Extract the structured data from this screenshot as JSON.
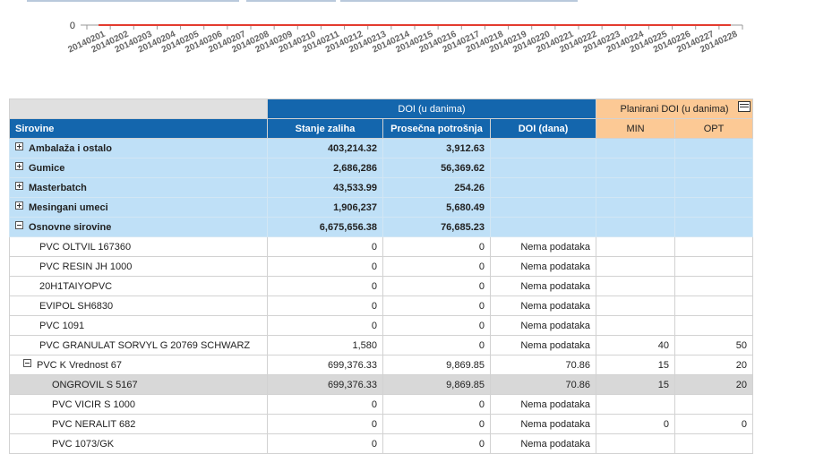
{
  "chart_data": {
    "type": "line",
    "title": "",
    "xlabel": "",
    "ylabel": "",
    "y_tick_labels": [
      "0"
    ],
    "ylim": [
      0,
      1
    ],
    "categories": [
      "20140201",
      "20140202",
      "20140203",
      "20140204",
      "20140205",
      "20140206",
      "20140207",
      "20140208",
      "20140209",
      "20140210",
      "20140211",
      "20140212",
      "20140213",
      "20140214",
      "20140215",
      "20140216",
      "20140217",
      "20140218",
      "20140219",
      "20140220",
      "20140221",
      "20140222",
      "20140223",
      "20140224",
      "20140225",
      "20140226",
      "20140227",
      "20140228"
    ],
    "series": [
      {
        "name": "",
        "color": "#e33b2e",
        "values": [
          0,
          0,
          0,
          0,
          0,
          0,
          0,
          0,
          0,
          0,
          0,
          0,
          0,
          0,
          0,
          0,
          0,
          0,
          0,
          0,
          0,
          0,
          0,
          0,
          0,
          0,
          0,
          0
        ]
      }
    ]
  },
  "table": {
    "group_header_doi": "DOI  (u danima)",
    "group_header_plan": "Planirani DOI (u danima)",
    "columns": [
      "Sirovine",
      "Stanje zaliha",
      "Prosečna potrošnja",
      "DOI (dana)",
      "MIN",
      "OPT"
    ],
    "groups": [
      {
        "name": "Ambalaža i ostalo",
        "stock": "403,214.32",
        "avg": "3,912.63",
        "doi": "",
        "min": "",
        "opt": ""
      },
      {
        "name": "Gumice",
        "stock": "2,686,286",
        "avg": "56,369.62",
        "doi": "",
        "min": "",
        "opt": ""
      },
      {
        "name": "Masterbatch",
        "stock": "43,533.99",
        "avg": "254.26",
        "doi": "",
        "min": "",
        "opt": ""
      },
      {
        "name": "Mesingani umeci",
        "stock": "1,906,237",
        "avg": "5,680.49",
        "doi": "",
        "min": "",
        "opt": ""
      },
      {
        "name": "Osnovne sirovine",
        "stock": "6,675,656.38",
        "avg": "76,685.23",
        "doi": "",
        "min": "",
        "opt": ""
      }
    ],
    "children": [
      {
        "name": "PVC OLTVIL 167360",
        "stock": "0",
        "avg": "0",
        "doi": "Nema podataka",
        "min": "",
        "opt": ""
      },
      {
        "name": "PVC RESIN JH 1000",
        "stock": "0",
        "avg": "0",
        "doi": "Nema podataka",
        "min": "",
        "opt": ""
      },
      {
        "name": "20H1TAIYOPVC",
        "stock": "0",
        "avg": "0",
        "doi": "Nema podataka",
        "min": "",
        "opt": ""
      },
      {
        "name": "EVIPOL SH6830",
        "stock": "0",
        "avg": "0",
        "doi": "Nema podataka",
        "min": "",
        "opt": ""
      },
      {
        "name": "PVC 1091",
        "stock": "0",
        "avg": "0",
        "doi": "Nema podataka",
        "min": "",
        "opt": ""
      },
      {
        "name": "PVC GRANULAT SORVYL G 20769 SCHWARZ",
        "stock": "1,580",
        "avg": "0",
        "doi": "Nema podataka",
        "min": "40",
        "opt": "50"
      },
      {
        "name": "PVC K Vrednost 67",
        "stock": "699,376.33",
        "avg": "9,869.85",
        "doi": "70.86",
        "min": "15",
        "opt": "20"
      }
    ],
    "subchildren": [
      {
        "name": "ONGROVIL S 5167",
        "stock": "699,376.33",
        "avg": "9,869.85",
        "doi": "70.86",
        "min": "15",
        "opt": "20"
      },
      {
        "name": "PVC VICIR S 1000",
        "stock": "0",
        "avg": "0",
        "doi": "Nema podataka",
        "min": "",
        "opt": ""
      },
      {
        "name": "PVC NERALIT 682",
        "stock": "0",
        "avg": "0",
        "doi": "Nema podataka",
        "min": "0",
        "opt": "0"
      },
      {
        "name": "PVC 1073/GK",
        "stock": "0",
        "avg": "0",
        "doi": "Nema podataka",
        "min": "",
        "opt": ""
      }
    ]
  }
}
